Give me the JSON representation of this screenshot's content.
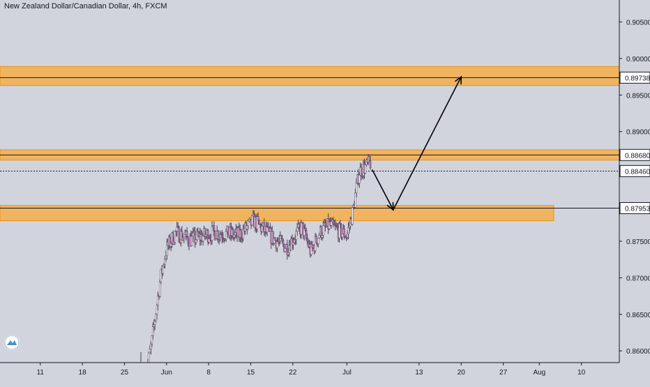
{
  "chart_data": {
    "type": "candlestick",
    "title": "New Zealand Dollar/Canadian Dollar, 4h, FXCM",
    "ylim": [
      0.8584,
      0.908
    ],
    "y_ticks": [
      "0.90500",
      "0.90000",
      "0.89500",
      "0.89000",
      "0.88500",
      "0.88000",
      "0.87500",
      "0.87000",
      "0.86500",
      "0.86000"
    ],
    "y_tick_values": [
      0.905,
      0.9,
      0.895,
      0.89,
      0.885,
      0.88,
      0.875,
      0.87,
      0.865,
      0.86
    ],
    "x_ticks": [
      "11",
      "18",
      "25",
      "Jun",
      "8",
      "15",
      "22",
      "Jul",
      "13",
      "20",
      "27",
      "Aug",
      "10"
    ],
    "x_tick_days": [
      11,
      18,
      25,
      32,
      39,
      46,
      53,
      62,
      74,
      81,
      88,
      94,
      101
    ],
    "x_day_range": [
      4.3,
      107.3
    ],
    "price_labels": [
      {
        "text": "0.89738",
        "value": 0.89738,
        "style": "line"
      },
      {
        "text": "0.88680",
        "value": 0.8868,
        "style": "line"
      },
      {
        "text": "0.88460",
        "value": 0.8846,
        "style": "dotted"
      },
      {
        "text": "0.87953",
        "value": 0.87953,
        "style": "line"
      }
    ],
    "zones": [
      {
        "low": 0.8963,
        "high": 0.8989,
        "x_start_day": 4.3,
        "x_end_day": 107.3
      },
      {
        "low": 0.8861,
        "high": 0.8875,
        "x_start_day": 4.3,
        "x_end_day": 107.3
      },
      {
        "low": 0.8778,
        "high": 0.8799,
        "x_start_day": 4.3,
        "x_end_day": 96.4
      }
    ],
    "arrow_path": [
      {
        "day": 66.2,
        "value": 0.8848
      },
      {
        "day": 69.7,
        "value": 0.8793
      },
      {
        "day": 81.0,
        "value": 0.8975
      }
    ],
    "colors": {
      "background": "#d1d4dc",
      "zone_fill": "#f0b461",
      "zone_border": "#e8911a",
      "candle": "#c47ab8",
      "wick": "#4a3b52",
      "axis_text": "#131722"
    }
  }
}
